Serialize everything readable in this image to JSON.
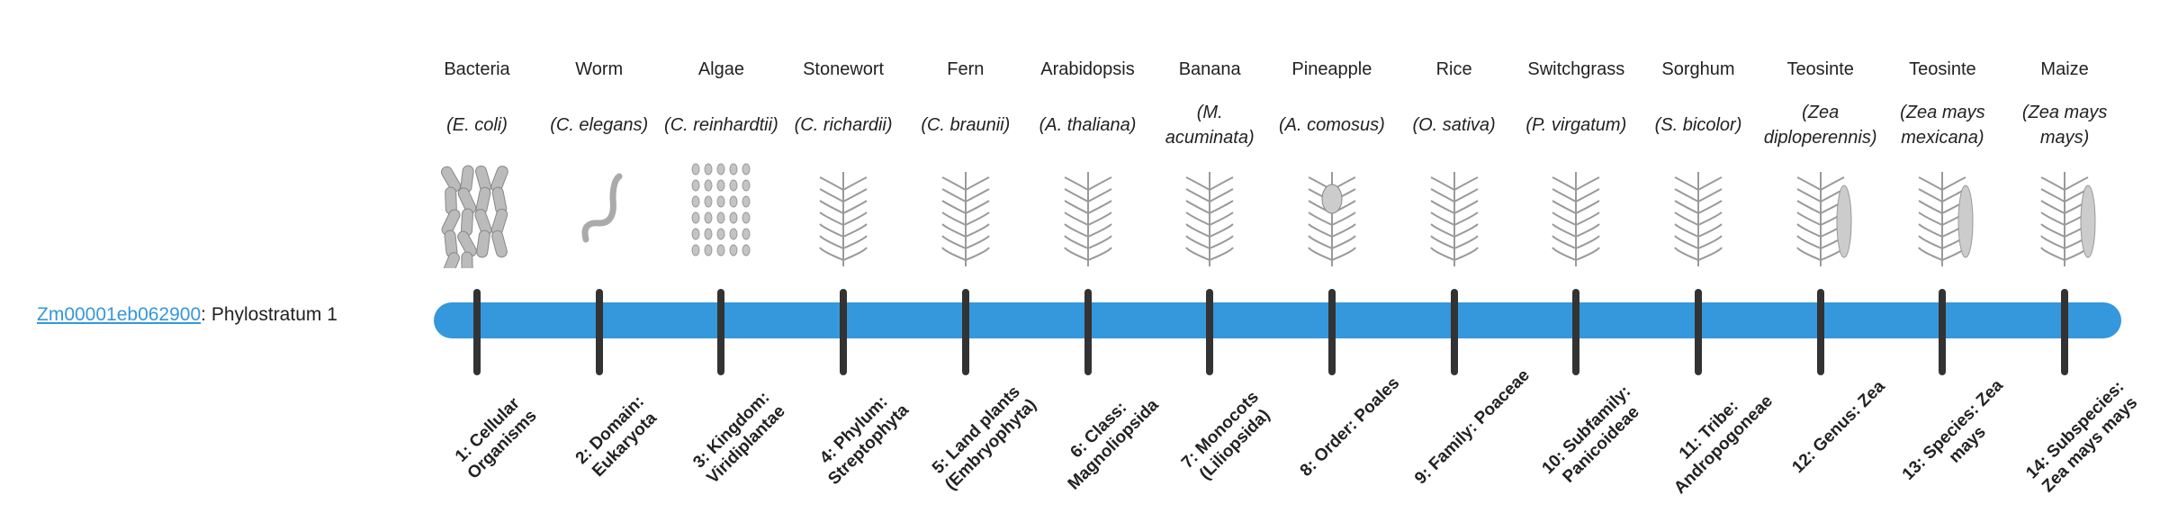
{
  "gene": {
    "id": "Zm00001eb062900",
    "suffix": ": Phylostratum 1"
  },
  "colors": {
    "bar": "#3597dc",
    "tick": "#333333",
    "link": "#3597dc"
  },
  "strata": [
    {
      "name": "Bacteria",
      "sci": "E. coli",
      "icon": "bacteria",
      "label": "1: Cellular Organisms"
    },
    {
      "name": "Worm",
      "sci": "C. elegans",
      "icon": "worm",
      "label": "2: Domain: Eukaryota"
    },
    {
      "name": "Algae",
      "sci": "C. reinhardtii",
      "icon": "algae",
      "label": "3: Kingdom: Viridiplantae"
    },
    {
      "name": "Stonewort",
      "sci": "C. richardii",
      "icon": "stonewort",
      "label": "4: Phylum: Streptophyta"
    },
    {
      "name": "Fern",
      "sci": "C. braunii",
      "icon": "fern",
      "label": "5: Land plants (Embryophyta)"
    },
    {
      "name": "Arabidopsis",
      "sci": "A. thaliana",
      "icon": "arabidopsis",
      "label": "6: Class: Magnoliopsida"
    },
    {
      "name": "Banana",
      "sci": "M. acuminata",
      "icon": "banana",
      "label": "7: Monocots (Liliopsida)"
    },
    {
      "name": "Pineapple",
      "sci": "A. comosus",
      "icon": "pineapple",
      "label": "8: Order: Poales"
    },
    {
      "name": "Rice",
      "sci": "O. sativa",
      "icon": "rice",
      "label": "9: Family: Poaceae"
    },
    {
      "name": "Switchgrass",
      "sci": "P. virgatum",
      "icon": "switchgrass",
      "label": "10: Subfamily: Panicoideae"
    },
    {
      "name": "Sorghum",
      "sci": "S. bicolor",
      "icon": "sorghum",
      "label": "11: Tribe: Andropogoneae"
    },
    {
      "name": "Teosinte",
      "sci": "Zea diploperennis",
      "icon": "teosinte",
      "label": "12: Genus: Zea"
    },
    {
      "name": "Teosinte",
      "sci": "Zea mays mexicana",
      "icon": "teosinte",
      "label": "13: Species: Zea mays"
    },
    {
      "name": "Maize",
      "sci": "Zea mays mays",
      "icon": "maize",
      "label": "14: Subspecies: Zea mays mays"
    }
  ]
}
